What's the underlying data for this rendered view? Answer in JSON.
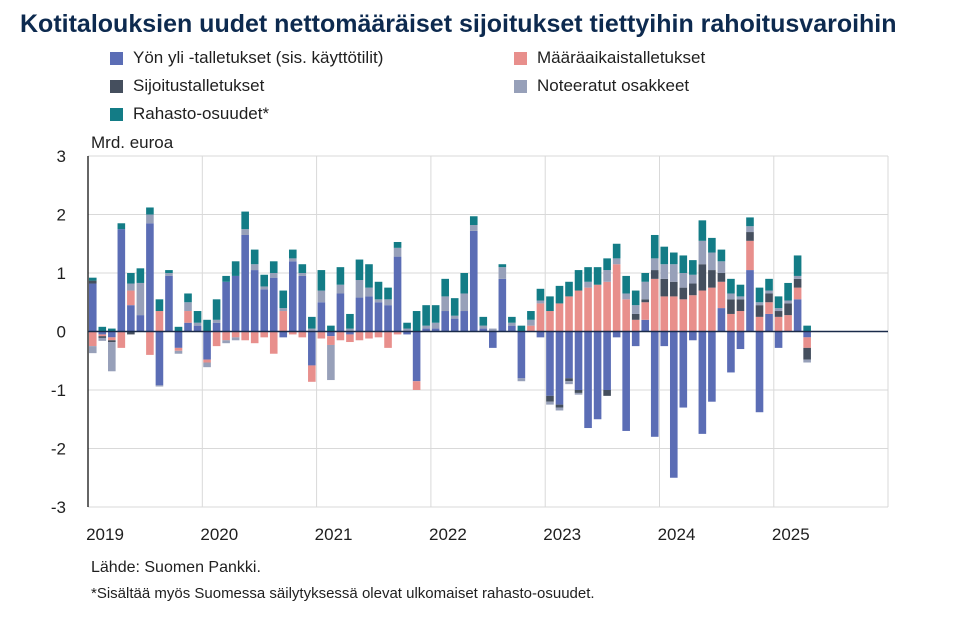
{
  "title": "Kotitalouksien uudet nettomääräiset sijoitukset tiettyihin rahoitusvaroihin",
  "unit_label": "Mrd. euroa",
  "source": "Lähde: Suomen Pankki.",
  "footnote": "*Sisältää myös Suomessa säilytyksessä olevat ulkomaiset rahasto-osuudet.",
  "colors": {
    "yon_yli": "#5b6db5",
    "maaraaika": "#e88f8c",
    "sijoitus": "#454f5e",
    "osakkeet": "#97a0b9",
    "rahasto": "#137c86"
  },
  "chart_data": {
    "type": "bar",
    "stacked": true,
    "ylim": [
      -3,
      3
    ],
    "yticks": [
      -3,
      -2,
      -1,
      0,
      1,
      2,
      3
    ],
    "xlabels": [
      "2019",
      "2020",
      "2021",
      "2022",
      "2023",
      "2024",
      "2025"
    ],
    "x_start": "2019-01",
    "grid": true,
    "legend_position": "top",
    "series": [
      {
        "name": "Yön yli -talletukset (sis. käyttötilit)",
        "color_key": "yon_yli",
        "values": [
          0.82,
          -0.05,
          -0.1,
          1.75,
          0.45,
          0.28,
          1.85,
          -0.92,
          0.95,
          -0.28,
          0.15,
          0.1,
          -0.48,
          0.15,
          0.85,
          0.95,
          1.65,
          1.05,
          0.72,
          0.92,
          -0.1,
          1.2,
          0.95,
          -0.58,
          0.5,
          -0.08,
          0.65,
          -0.05,
          0.58,
          0.6,
          0.5,
          0.45,
          1.28,
          -0.05,
          -0.85,
          0.05,
          0.05,
          0.35,
          0.22,
          0.35,
          1.72,
          0.05,
          -0.28,
          0.9,
          0.1,
          -0.8,
          0,
          -0.1,
          -1.1,
          -1.25,
          -0.8,
          -1.0,
          -1.65,
          -1.5,
          -1.0,
          -0.1,
          -1.7,
          -0.25,
          0.2,
          -1.8,
          -0.25,
          -2.5,
          -1.3,
          -0.15,
          -1.75,
          -1.2,
          0.4,
          -0.7,
          -0.3,
          1.05,
          -1.38,
          0.3,
          -0.28,
          0.0,
          0.55,
          -0.1
        ]
      },
      {
        "name": "Määräaikaistalletukset",
        "color_key": "maaraaika",
        "values": [
          -0.25,
          -0.03,
          -0.05,
          -0.28,
          0.25,
          0,
          -0.4,
          0.35,
          0,
          -0.05,
          0.2,
          0,
          -0.05,
          -0.25,
          -0.15,
          -0.1,
          -0.15,
          -0.2,
          -0.1,
          -0.38,
          0.35,
          -0.05,
          -0.1,
          -0.28,
          -0.12,
          -0.15,
          -0.15,
          -0.13,
          -0.15,
          -0.12,
          -0.1,
          -0.28,
          -0.05,
          0,
          -0.15,
          0,
          0,
          0,
          0,
          0,
          0,
          0,
          0,
          0,
          0,
          0,
          0.1,
          0.48,
          0.35,
          0.48,
          0.6,
          0.7,
          0.75,
          0.8,
          0.85,
          1.15,
          0.55,
          0.2,
          0.3,
          0.9,
          0.6,
          0.6,
          0.55,
          0.62,
          0.7,
          0.75,
          0.45,
          0.3,
          0.35,
          0.5,
          0.25,
          0.2,
          0.25,
          0.28,
          0.2,
          -0.18
        ]
      },
      {
        "name": "Sijoitustalletukset",
        "color_key": "sijoitus",
        "values": [
          0.05,
          -0.03,
          -0.03,
          0,
          -0.05,
          0,
          0,
          0,
          0,
          0,
          0,
          0,
          0,
          0,
          0,
          0,
          0,
          0,
          0,
          0,
          0,
          0,
          0,
          0,
          0,
          0,
          0,
          0,
          0,
          0,
          0,
          0,
          0,
          0,
          0,
          0,
          0,
          0,
          0,
          0,
          0,
          0,
          0,
          0,
          0,
          0,
          0,
          0,
          -0.1,
          -0.05,
          -0.05,
          -0.05,
          0,
          0,
          -0.1,
          0,
          0,
          0.1,
          0.05,
          0.15,
          0.3,
          0.25,
          0.2,
          0.2,
          0.45,
          0.3,
          0.15,
          0.25,
          0.2,
          0.15,
          0.2,
          0.15,
          0.1,
          0.2,
          0.15,
          -0.2
        ]
      },
      {
        "name": "Noteeratut osakkeet",
        "color_key": "osakkeet",
        "values": [
          -0.12,
          -0.05,
          -0.5,
          0,
          0.12,
          0.55,
          0.15,
          -0.02,
          0.05,
          -0.05,
          0.15,
          0.05,
          -0.08,
          0.05,
          -0.05,
          -0.05,
          0.1,
          0.1,
          0.05,
          0.08,
          0.05,
          0.05,
          0.05,
          0.05,
          0.2,
          -0.6,
          0.15,
          0.05,
          0.3,
          0.15,
          0.05,
          0.1,
          0.15,
          0.05,
          0,
          0.05,
          0.1,
          0.25,
          0.05,
          0.3,
          0.1,
          0.05,
          0.05,
          0.2,
          0.05,
          -0.05,
          0.1,
          0.05,
          -0.05,
          -0.05,
          -0.05,
          -0.03,
          0.1,
          0,
          0.2,
          0.1,
          0.1,
          0.15,
          0.3,
          0.2,
          0.25,
          0.3,
          0.25,
          0.15,
          0.4,
          0.3,
          0.2,
          0.1,
          0.05,
          0.1,
          0.05,
          0.05,
          0.05,
          0.05,
          0.05,
          -0.05
        ]
      },
      {
        "name": "Rahasto-osuudet*",
        "color_key": "rahasto",
        "values": [
          0.05,
          0.08,
          0.05,
          0.1,
          0.18,
          0.25,
          0.12,
          0.2,
          0.05,
          0.08,
          0.15,
          0.2,
          0.2,
          0.35,
          0.1,
          0.25,
          0.3,
          0.25,
          0.2,
          0.2,
          0.3,
          0.15,
          0.15,
          0.2,
          0.35,
          0.1,
          0.3,
          0.25,
          0.35,
          0.4,
          0.3,
          0.2,
          0.1,
          0.1,
          0.35,
          0.35,
          0.3,
          0.3,
          0.3,
          0.35,
          0.15,
          0.15,
          0,
          0.05,
          0.1,
          0.1,
          0.15,
          0.2,
          0.25,
          0.3,
          0.25,
          0.35,
          0.25,
          0.3,
          0.2,
          0.25,
          0.3,
          0.25,
          0.15,
          0.4,
          0.3,
          0.2,
          0.3,
          0.25,
          0.35,
          0.25,
          0.2,
          0.25,
          0.2,
          0.15,
          0.25,
          0.2,
          0.2,
          0.3,
          0.35,
          0.1
        ]
      }
    ]
  }
}
